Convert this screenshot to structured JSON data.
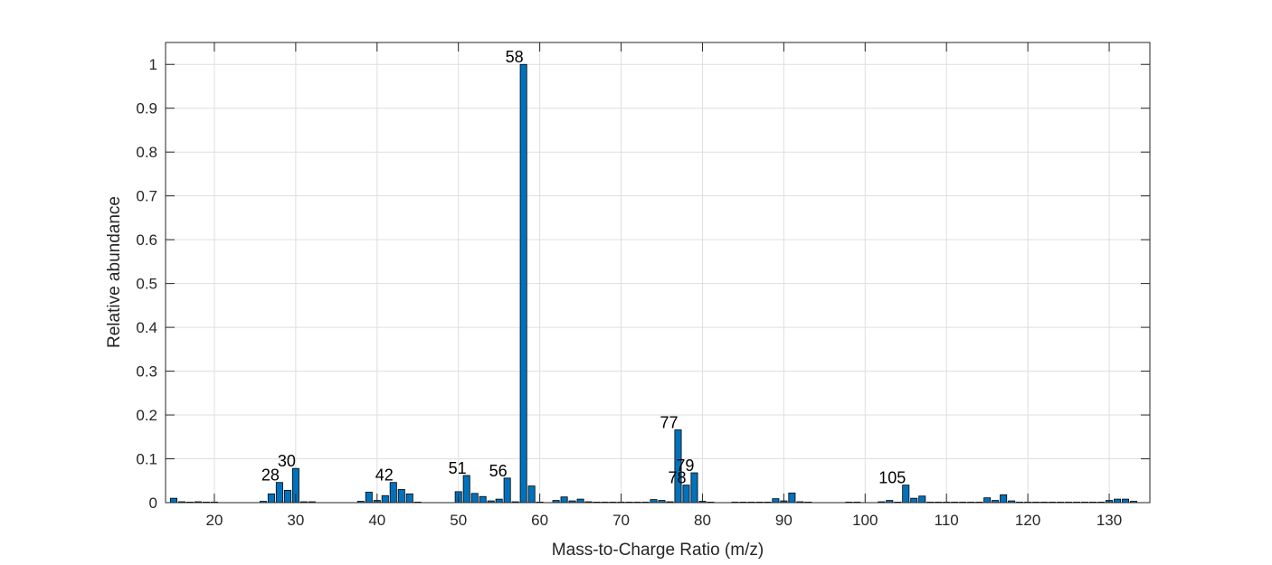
{
  "chart_data": {
    "type": "bar",
    "title": "",
    "xlabel": "Mass-to-Charge Ratio (m/z)",
    "ylabel": "Relative abundance",
    "xlim": [
      14,
      135
    ],
    "ylim": [
      0,
      1.05
    ],
    "xticks": [
      20,
      30,
      40,
      50,
      60,
      70,
      80,
      90,
      100,
      110,
      120,
      130
    ],
    "yticks": [
      0,
      0.1,
      0.2,
      0.3,
      0.4,
      0.5,
      0.6,
      0.7,
      0.8,
      0.9,
      1
    ],
    "ytick_labels": [
      "0",
      "0.1",
      "0.2",
      "0.3",
      "0.4",
      "0.5",
      "0.6",
      "0.7",
      "0.8",
      "0.9",
      "1"
    ],
    "grid": true,
    "bar_color": "#0072BD",
    "x": [
      15,
      16,
      17,
      18,
      19,
      20,
      26,
      27,
      28,
      29,
      30,
      31,
      32,
      38,
      39,
      40,
      41,
      42,
      43,
      44,
      45,
      50,
      51,
      52,
      53,
      54,
      55,
      56,
      57,
      58,
      59,
      60,
      62,
      63,
      64,
      65,
      66,
      67,
      68,
      69,
      70,
      71,
      72,
      73,
      74,
      75,
      76,
      77,
      78,
      79,
      80,
      81,
      84,
      85,
      86,
      87,
      88,
      89,
      90,
      91,
      92,
      93,
      98,
      99,
      102,
      103,
      104,
      105,
      106,
      107,
      108,
      109,
      110,
      111,
      112,
      113,
      114,
      115,
      116,
      117,
      118,
      119,
      120,
      121,
      122,
      123,
      124,
      125,
      126,
      127,
      128,
      129,
      130,
      131,
      132,
      133
    ],
    "values": [
      0.01,
      0.002,
      0.001,
      0.002,
      0.001,
      0.001,
      0.003,
      0.02,
      0.046,
      0.028,
      0.078,
      0.002,
      0.002,
      0.003,
      0.024,
      0.005,
      0.016,
      0.046,
      0.03,
      0.02,
      0.001,
      0.025,
      0.062,
      0.021,
      0.014,
      0.004,
      0.008,
      0.056,
      0.002,
      1.0,
      0.038,
      0.001,
      0.005,
      0.013,
      0.004,
      0.008,
      0.002,
      0.001,
      0.001,
      0.001,
      0.001,
      0.001,
      0.001,
      0.001,
      0.007,
      0.005,
      0.002,
      0.166,
      0.04,
      0.068,
      0.003,
      0.001,
      0.001,
      0.001,
      0.001,
      0.001,
      0.001,
      0.009,
      0.004,
      0.022,
      0.002,
      0.001,
      0.001,
      0.001,
      0.002,
      0.005,
      0.001,
      0.04,
      0.01,
      0.015,
      0.001,
      0.001,
      0.001,
      0.001,
      0.001,
      0.001,
      0.001,
      0.011,
      0.005,
      0.018,
      0.004,
      0.001,
      0.001,
      0.001,
      0.001,
      0.001,
      0.001,
      0.001,
      0.001,
      0.001,
      0.001,
      0.001,
      0.005,
      0.008,
      0.008,
      0.003
    ],
    "annotations": [
      {
        "text": "28",
        "x": 28,
        "y": 0.046
      },
      {
        "text": "30",
        "x": 30,
        "y": 0.078
      },
      {
        "text": "42",
        "x": 42,
        "y": 0.046
      },
      {
        "text": "51",
        "x": 51,
        "y": 0.062
      },
      {
        "text": "56",
        "x": 56,
        "y": 0.056
      },
      {
        "text": "58",
        "x": 58,
        "y": 1.0
      },
      {
        "text": "77",
        "x": 77,
        "y": 0.166
      },
      {
        "text": "78",
        "x": 78,
        "y": 0.04
      },
      {
        "text": "79",
        "x": 79,
        "y": 0.068
      },
      {
        "text": "105",
        "x": 105,
        "y": 0.04
      }
    ]
  }
}
